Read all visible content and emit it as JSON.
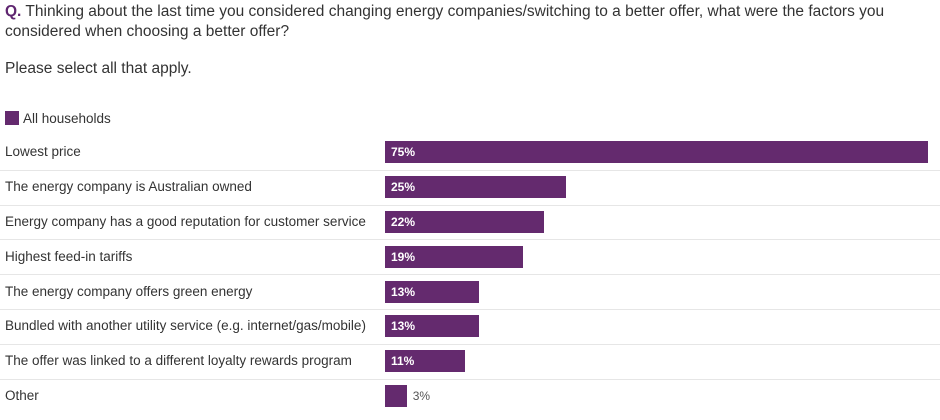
{
  "question": {
    "prefix": "Q.",
    "text": "Thinking about the last time you considered changing energy companies/switching to a better offer, what were the factors you considered when choosing a better offer?"
  },
  "instruction": "Please select all that apply.",
  "colors": {
    "bar": "#642a6e",
    "accent": "#5f2570"
  },
  "chart_data": {
    "type": "bar",
    "orientation": "horizontal",
    "title": "",
    "xlabel": "",
    "ylabel": "",
    "xlim": [
      0,
      75
    ],
    "legend": [
      {
        "name": "All households",
        "color": "#642a6e"
      }
    ],
    "categories": [
      "Lowest price",
      "The energy company is Australian owned",
      "Energy company has a good reputation for customer service",
      "Highest feed-in tariffs",
      "The energy company offers green energy",
      "Bundled with another utility service (e.g. internet/gas/mobile)",
      "The offer was linked to a different loyalty rewards program",
      "Other"
    ],
    "series": [
      {
        "name": "All households",
        "values": [
          75,
          25,
          22,
          19,
          13,
          13,
          11,
          3
        ]
      }
    ],
    "value_labels": [
      "75%",
      "25%",
      "22%",
      "19%",
      "13%",
      "13%",
      "11%",
      "3%"
    ]
  }
}
